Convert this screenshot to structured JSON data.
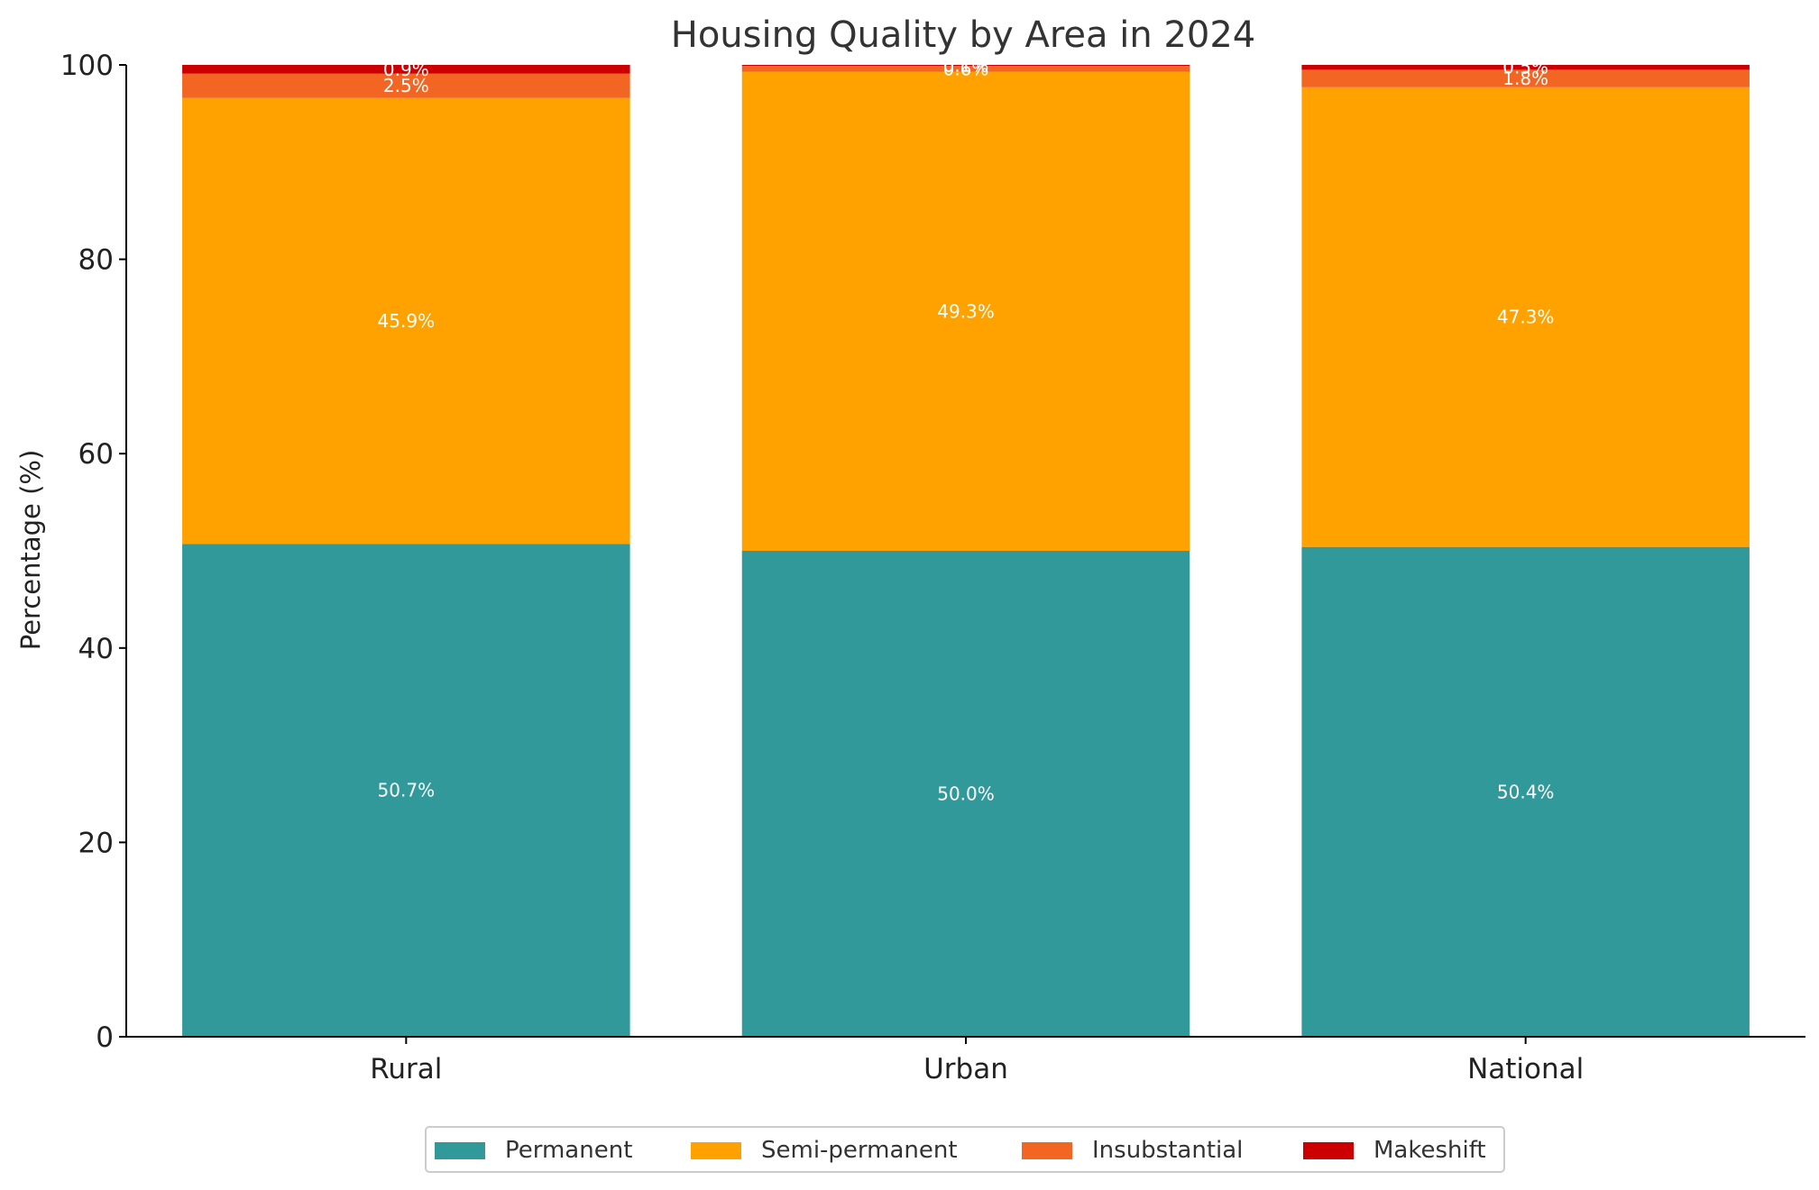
{
  "chart_data": {
    "type": "bar",
    "stacked": true,
    "title": "Housing Quality by Area in 2024",
    "xlabel": "",
    "ylabel": "Percentage (%)",
    "ylim": [
      0,
      100
    ],
    "yticks": [
      0,
      20,
      40,
      60,
      80,
      100
    ],
    "categories": [
      "Rural",
      "Urban",
      "National"
    ],
    "series": [
      {
        "name": "Permanent",
        "color": "#31999a",
        "values": [
          50.7,
          50.0,
          50.4
        ],
        "labels": [
          "50.7%",
          "50.0%",
          "50.4%"
        ]
      },
      {
        "name": "Semi-permanent",
        "color": "#ffa200",
        "values": [
          45.9,
          49.3,
          47.3
        ],
        "labels": [
          "45.9%",
          "49.3%",
          "47.3%"
        ]
      },
      {
        "name": "Insubstantial",
        "color": "#f26522",
        "values": [
          2.5,
          0.6,
          1.8
        ],
        "labels": [
          "2.5%",
          "0.6%",
          "1.8%"
        ]
      },
      {
        "name": "Makeshift",
        "color": "#cc0000",
        "values": [
          0.9,
          0.1,
          0.5
        ],
        "labels": [
          "0.9%",
          "0.1%",
          "0.5%"
        ]
      }
    ],
    "grid": false,
    "legend_position": "bottom-center",
    "label_color": "#ffffff"
  }
}
